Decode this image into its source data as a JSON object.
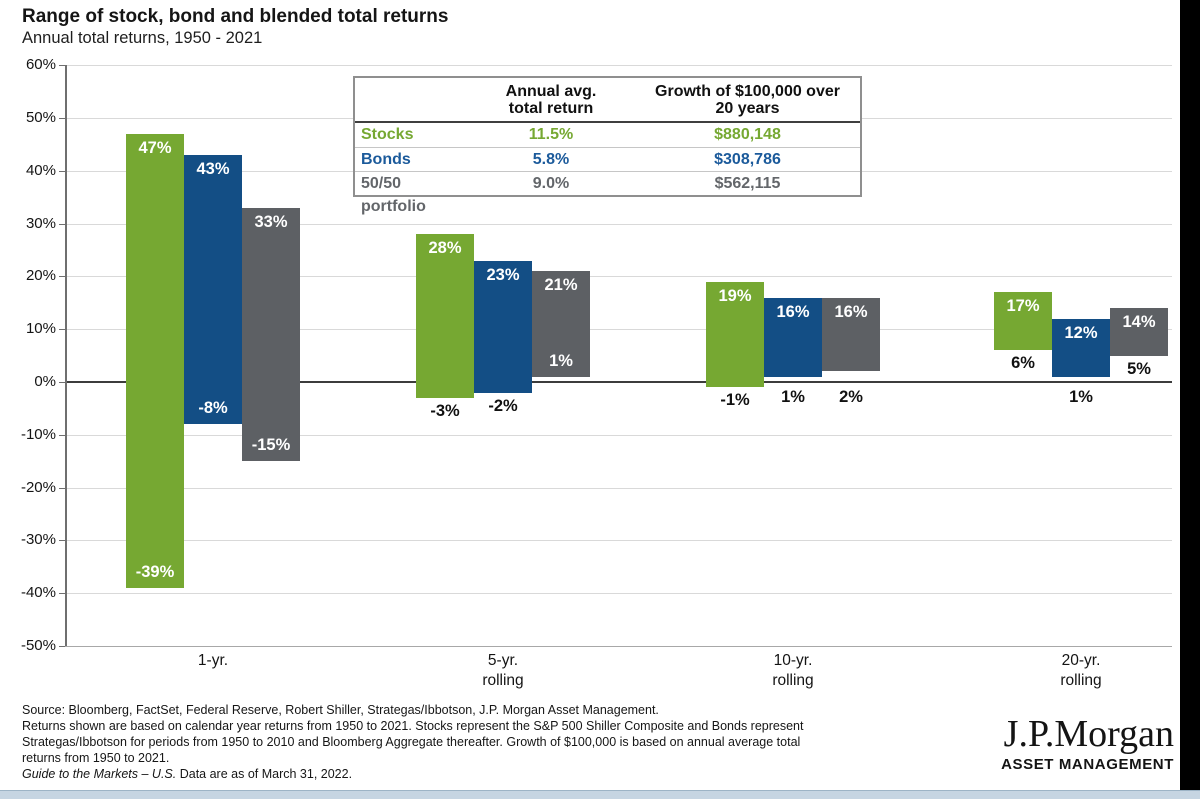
{
  "header": {
    "title": "Range of stock, bond and blended total returns",
    "subtitle": "Annual total returns, 1950 - 2021"
  },
  "colors": {
    "stocks": "#76a832",
    "bonds": "#134e85",
    "blend": "#5d6064",
    "grid": "#d9d9d9",
    "grid_bottom": "#a8a8a8",
    "zero_line": "#3c3c3c",
    "axis": "#6f6f6f",
    "bar_label_inside": "#ffffff",
    "bar_label_outside": "#111111",
    "right_strip": "#000000",
    "bottom_strip": "#c6d5e2"
  },
  "summary_table": {
    "col_headers": [
      "Annual avg.\ntotal return",
      "Growth of $100,000 over\n20 years"
    ],
    "rows": [
      {
        "label": "Stocks",
        "annual_avg_total_return": "11.5%",
        "growth_of_100k_over_20yr": "$880,148",
        "color": "#76a832"
      },
      {
        "label": "Bonds",
        "annual_avg_total_return": "5.8%",
        "growth_of_100k_over_20yr": "$308,786",
        "color": "#1b5a9b"
      },
      {
        "label": "50/50 portfolio",
        "annual_avg_total_return": "9.0%",
        "growth_of_100k_over_20yr": "$562,115",
        "color": "#63666a"
      }
    ]
  },
  "chart_data": {
    "type": "bar",
    "subtype": "floating-range-columns",
    "title": "Range of stock, bond and blended total returns",
    "subtitle": "Annual total returns, 1950 - 2021",
    "categories": [
      "1-yr.",
      "5-yr.\nrolling",
      "10-yr.\nrolling",
      "20-yr.\nrolling"
    ],
    "y_axis": {
      "min": -50,
      "max": 60,
      "step": 10,
      "suffix": "%",
      "grid": true
    },
    "legend_position": "none",
    "series": [
      {
        "key": "stocks",
        "name": "Stocks",
        "color": "#76a832",
        "ranges": [
          {
            "min": -39,
            "max": 47
          },
          {
            "min": -3,
            "max": 28
          },
          {
            "min": -1,
            "max": 19
          },
          {
            "min": 6,
            "max": 17
          }
        ],
        "min_label_inside": [
          true,
          false,
          false,
          false
        ]
      },
      {
        "key": "bonds",
        "name": "Bonds",
        "color": "#134e85",
        "ranges": [
          {
            "min": -8,
            "max": 43
          },
          {
            "min": -2,
            "max": 23
          },
          {
            "min": 1,
            "max": 16
          },
          {
            "min": 1,
            "max": 12
          }
        ],
        "min_label_inside": [
          true,
          false,
          false,
          false
        ]
      },
      {
        "key": "blend",
        "name": "50/50 portfolio",
        "color": "#5d6064",
        "ranges": [
          {
            "min": -15,
            "max": 33
          },
          {
            "min": 1,
            "max": 21
          },
          {
            "min": 2,
            "max": 16
          },
          {
            "min": 5,
            "max": 14
          }
        ],
        "min_label_inside": [
          true,
          true,
          false,
          false
        ]
      }
    ]
  },
  "footer": {
    "lines": [
      "Source: Bloomberg, FactSet, Federal Reserve, Robert Shiller, Strategas/Ibbotson, J.P. Morgan Asset Management.",
      "Returns shown are based on calendar year returns from 1950 to 2021. Stocks represent the S&P 500 Shiller Composite and Bonds represent",
      "Strategas/Ibbotson for periods from 1950 to 2010 and Bloomberg Aggregate thereafter. Growth of $100,000 is based on annual average total",
      "returns from 1950 to 2021."
    ],
    "gtm_italic": "Guide to the Markets – U.S.",
    "gtm_rest": " Data are as of March 31, 2022."
  },
  "logo": {
    "brand": "J.P.Morgan",
    "division": "ASSET MANAGEMENT"
  }
}
